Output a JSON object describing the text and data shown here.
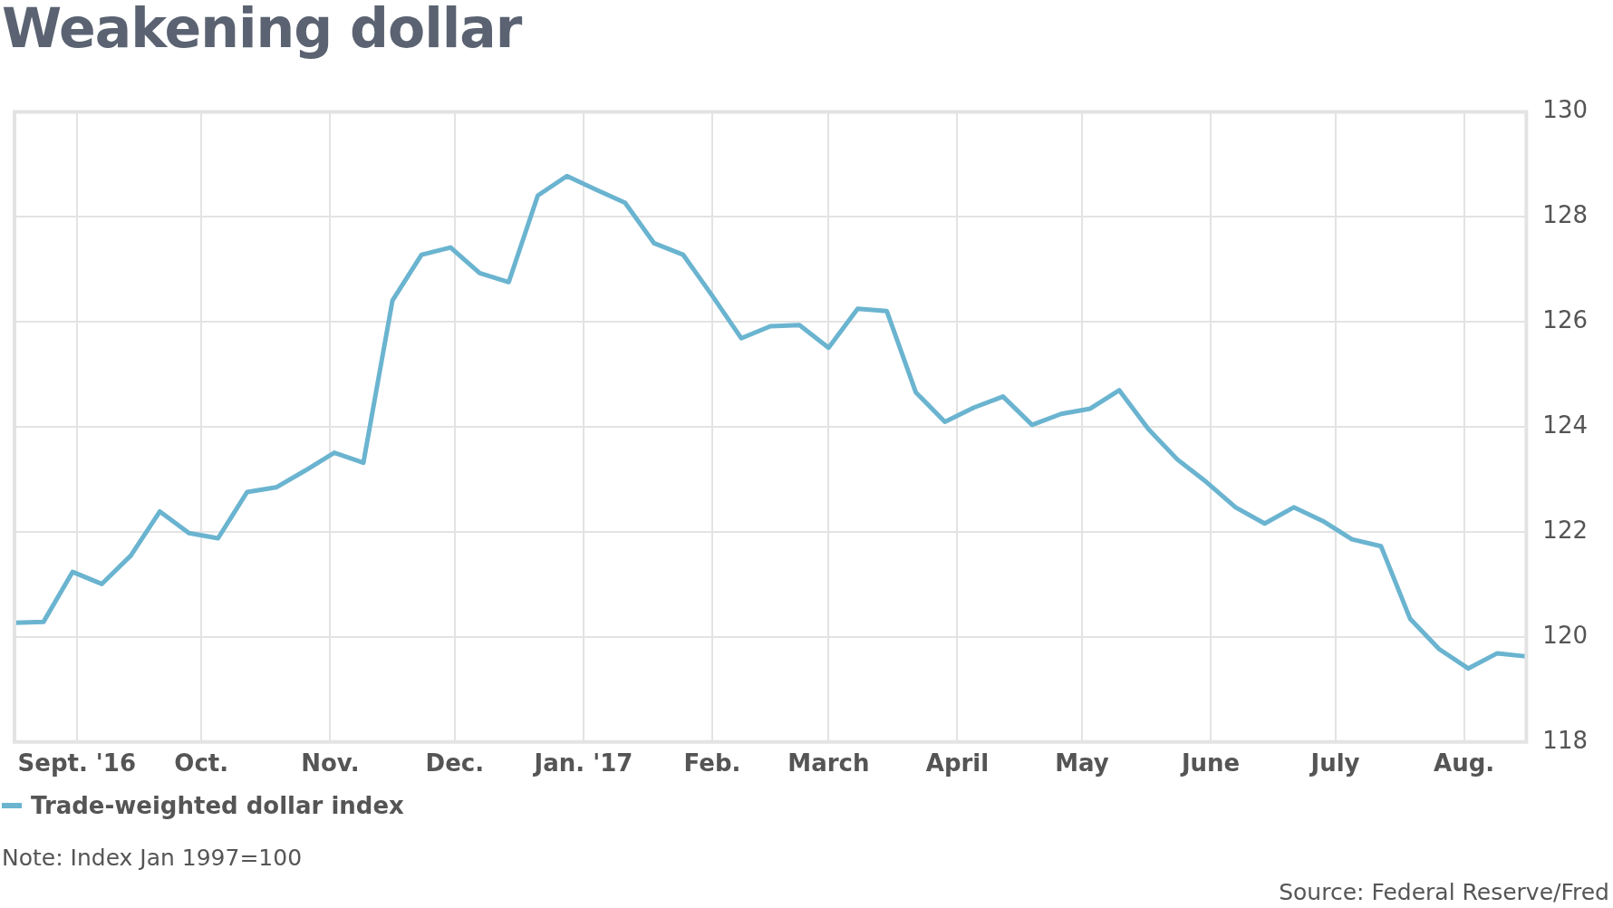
{
  "chart_data": {
    "type": "line",
    "title": "Weakening dollar",
    "x": [
      "2016-08-17",
      "2016-08-24",
      "2016-08-31",
      "2016-09-07",
      "2016-09-14",
      "2016-09-21",
      "2016-09-28",
      "2016-10-05",
      "2016-10-12",
      "2016-10-19",
      "2016-10-26",
      "2016-11-02",
      "2016-11-09",
      "2016-11-16",
      "2016-11-23",
      "2016-11-30",
      "2016-12-07",
      "2016-12-14",
      "2016-12-21",
      "2016-12-28",
      "2017-01-04",
      "2017-01-11",
      "2017-01-18",
      "2017-01-25",
      "2017-02-01",
      "2017-02-08",
      "2017-02-15",
      "2017-02-22",
      "2017-03-01",
      "2017-03-08",
      "2017-03-15",
      "2017-03-22",
      "2017-03-29",
      "2017-04-05",
      "2017-04-12",
      "2017-04-19",
      "2017-04-26",
      "2017-05-03",
      "2017-05-10",
      "2017-05-17",
      "2017-05-24",
      "2017-05-31",
      "2017-06-07",
      "2017-06-14",
      "2017-06-21",
      "2017-06-28",
      "2017-07-05",
      "2017-07-12",
      "2017-07-19",
      "2017-07-26",
      "2017-08-02",
      "2017-08-09",
      "2017-08-16"
    ],
    "series": [
      {
        "name": "Trade-weighted dollar index",
        "color": "#6ab4d0",
        "values": [
          120.27,
          120.29,
          121.24,
          121.01,
          121.55,
          122.39,
          121.98,
          121.88,
          122.76,
          122.85,
          123.17,
          123.51,
          123.32,
          126.41,
          127.28,
          127.42,
          126.93,
          126.76,
          128.41,
          128.78,
          128.52,
          128.27,
          127.5,
          127.28,
          126.5,
          125.69,
          125.92,
          125.94,
          125.51,
          126.25,
          126.21,
          124.66,
          124.1,
          124.37,
          124.58,
          124.04,
          124.25,
          124.35,
          124.7,
          123.96,
          123.38,
          122.95,
          122.47,
          122.16,
          122.47,
          122.21,
          121.86,
          121.73,
          120.35,
          119.77,
          119.4,
          119.69,
          119.63
        ]
      }
    ],
    "xlim": [
      "2016-08-17",
      "2017-08-16"
    ],
    "xticks": [
      {
        "value": "2016-09-01",
        "label": "Sept. '16"
      },
      {
        "value": "2016-10-01",
        "label": "Oct."
      },
      {
        "value": "2016-11-01",
        "label": "Nov."
      },
      {
        "value": "2016-12-01",
        "label": "Dec."
      },
      {
        "value": "2017-01-01",
        "label": "Jan. '17"
      },
      {
        "value": "2017-02-01",
        "label": "Feb."
      },
      {
        "value": "2017-03-01",
        "label": "March"
      },
      {
        "value": "2017-04-01",
        "label": "April"
      },
      {
        "value": "2017-05-01",
        "label": "May"
      },
      {
        "value": "2017-06-01",
        "label": "June"
      },
      {
        "value": "2017-07-01",
        "label": "July"
      },
      {
        "value": "2017-08-01",
        "label": "Aug."
      }
    ],
    "ylim": [
      118,
      130
    ],
    "yticks": [
      118,
      120,
      122,
      124,
      126,
      128,
      130
    ],
    "grid": true,
    "legend": "bottom left",
    "marker": "none",
    "line_style": "solid",
    "annotations": [
      "Note: Index Jan 1997=100",
      "Source: Federal Reserve/Fred"
    ]
  }
}
